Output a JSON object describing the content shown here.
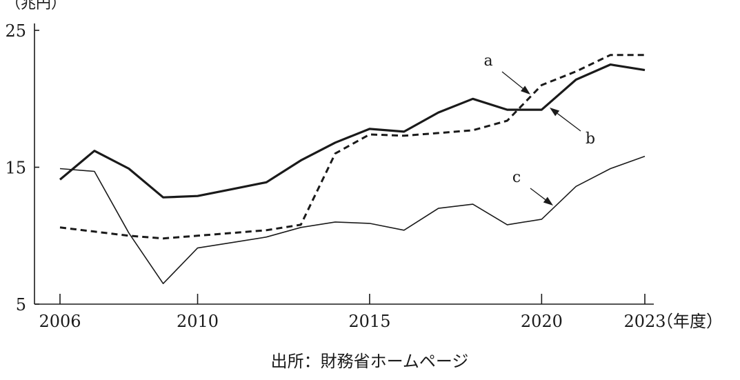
{
  "chart_data": {
    "type": "line",
    "ylabel": "（兆円）",
    "xlabel": "（年度）",
    "ylim": [
      5,
      25
    ],
    "xlim": [
      2006,
      2023
    ],
    "yticks": [
      5,
      15,
      25
    ],
    "xticks": [
      2006,
      2010,
      2015,
      2020,
      2023
    ],
    "grid": false,
    "x": [
      2006,
      2007,
      2008,
      2009,
      2010,
      2011,
      2012,
      2013,
      2014,
      2015,
      2016,
      2017,
      2018,
      2019,
      2020,
      2021,
      2022,
      2023
    ],
    "series": [
      {
        "name": "a",
        "style": "dashed-thick",
        "values": [
          10.6,
          10.3,
          10.0,
          9.8,
          10.0,
          10.2,
          10.4,
          10.8,
          16.0,
          17.4,
          17.3,
          17.5,
          17.7,
          18.4,
          21.0,
          22.0,
          23.2,
          23.2
        ]
      },
      {
        "name": "b",
        "style": "solid-thick",
        "values": [
          14.1,
          16.2,
          14.9,
          12.8,
          12.9,
          13.4,
          13.9,
          15.5,
          16.8,
          17.8,
          17.6,
          19.0,
          20.0,
          19.2,
          19.2,
          21.4,
          22.5,
          22.1
        ]
      },
      {
        "name": "c",
        "style": "solid-thin",
        "values": [
          14.9,
          14.7,
          10.2,
          6.5,
          9.1,
          9.5,
          9.9,
          10.6,
          11.0,
          10.9,
          10.4,
          12.0,
          12.3,
          10.8,
          11.2,
          13.6,
          14.9,
          15.8
        ]
      }
    ]
  },
  "source": "出所：財務省ホームページ"
}
